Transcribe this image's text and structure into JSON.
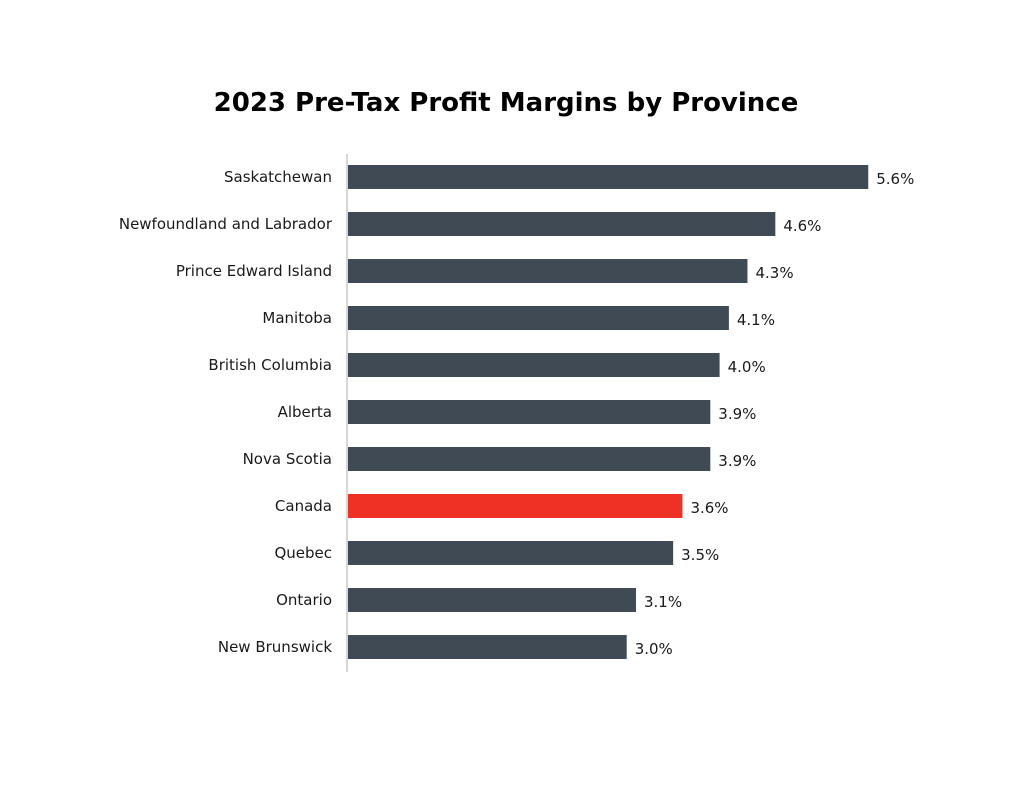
{
  "chart_data": {
    "type": "bar",
    "orientation": "horizontal",
    "title": "2023 Pre-Tax Profit Margins by Province",
    "categories": [
      "Saskatchewan",
      "Newfoundland and Labrador",
      "Prince Edward Island",
      "Manitoba",
      "British Columbia",
      "Alberta",
      "Nova Scotia",
      "Canada",
      "Quebec",
      "Ontario",
      "New Brunswick"
    ],
    "values": [
      5.6,
      4.6,
      4.3,
      4.1,
      4.0,
      3.9,
      3.9,
      3.6,
      3.5,
      3.1,
      3.0
    ],
    "value_labels": [
      "5.6%",
      "4.6%",
      "4.3%",
      "4.1%",
      "4.0%",
      "3.9%",
      "3.9%",
      "3.6%",
      "3.5%",
      "3.1%",
      "3.0%"
    ],
    "xlim": [
      0,
      6
    ],
    "highlight_category": "Canada",
    "colors": {
      "bar": "#3f4a55",
      "highlight": "#ee3124",
      "axis": "#c8c8c8"
    },
    "grid": false,
    "legend": "none"
  }
}
